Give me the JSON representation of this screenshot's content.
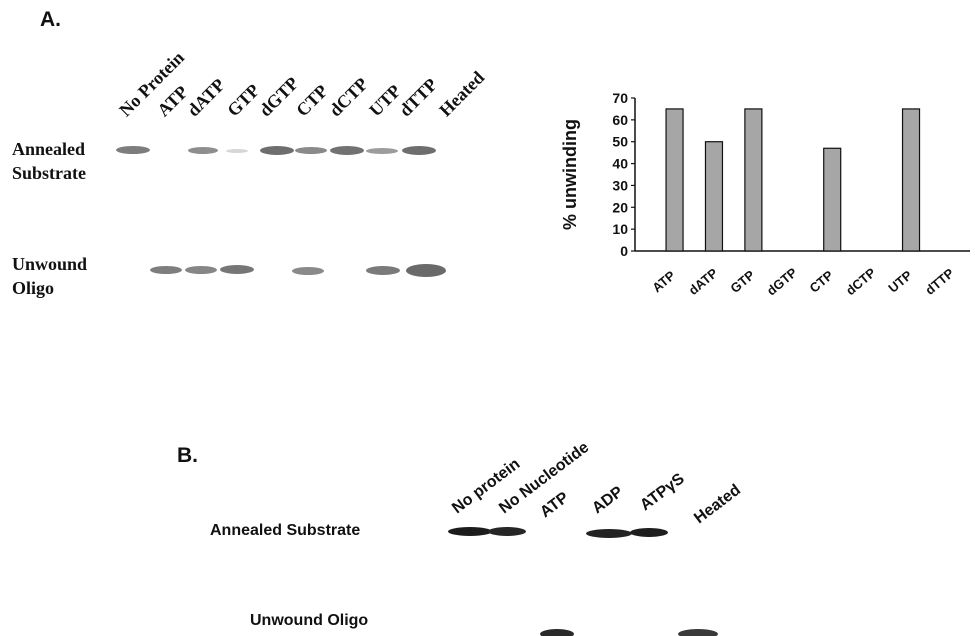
{
  "panel_a": {
    "label": "A.",
    "gel": {
      "lanes": [
        "No Protein",
        "ATP",
        "dATP",
        "GTP",
        "dGTP",
        "CTP",
        "dCTP",
        "UTP",
        "dTTP",
        "Heated"
      ],
      "row_top_line1": "Annealed",
      "row_top_line2": "Substrate",
      "row_bottom_line1": "Unwound",
      "row_bottom_line2": "Oligo"
    }
  },
  "panel_b": {
    "label": "B.",
    "gel": {
      "lanes": [
        "No protein",
        "No Nucleotide",
        "ATP",
        "ADP",
        "ATPγS",
        "Heated"
      ],
      "row_top": "Annealed Substrate",
      "row_bottom": "Unwound Oligo"
    }
  },
  "chart_data": {
    "type": "bar",
    "ylabel": "% unwinding",
    "ylim": [
      0,
      70
    ],
    "yticks": [
      "0",
      "10",
      "20",
      "30",
      "40",
      "50",
      "60",
      "70"
    ],
    "categories": [
      "ATP",
      "dATP",
      "GTP",
      "dGTP",
      "CTP",
      "dCTP",
      "UTP",
      "dTTP"
    ],
    "values": [
      65,
      50,
      65,
      0,
      47,
      0,
      65,
      0
    ],
    "bar_color": "#a6a6a6",
    "grid": false
  }
}
